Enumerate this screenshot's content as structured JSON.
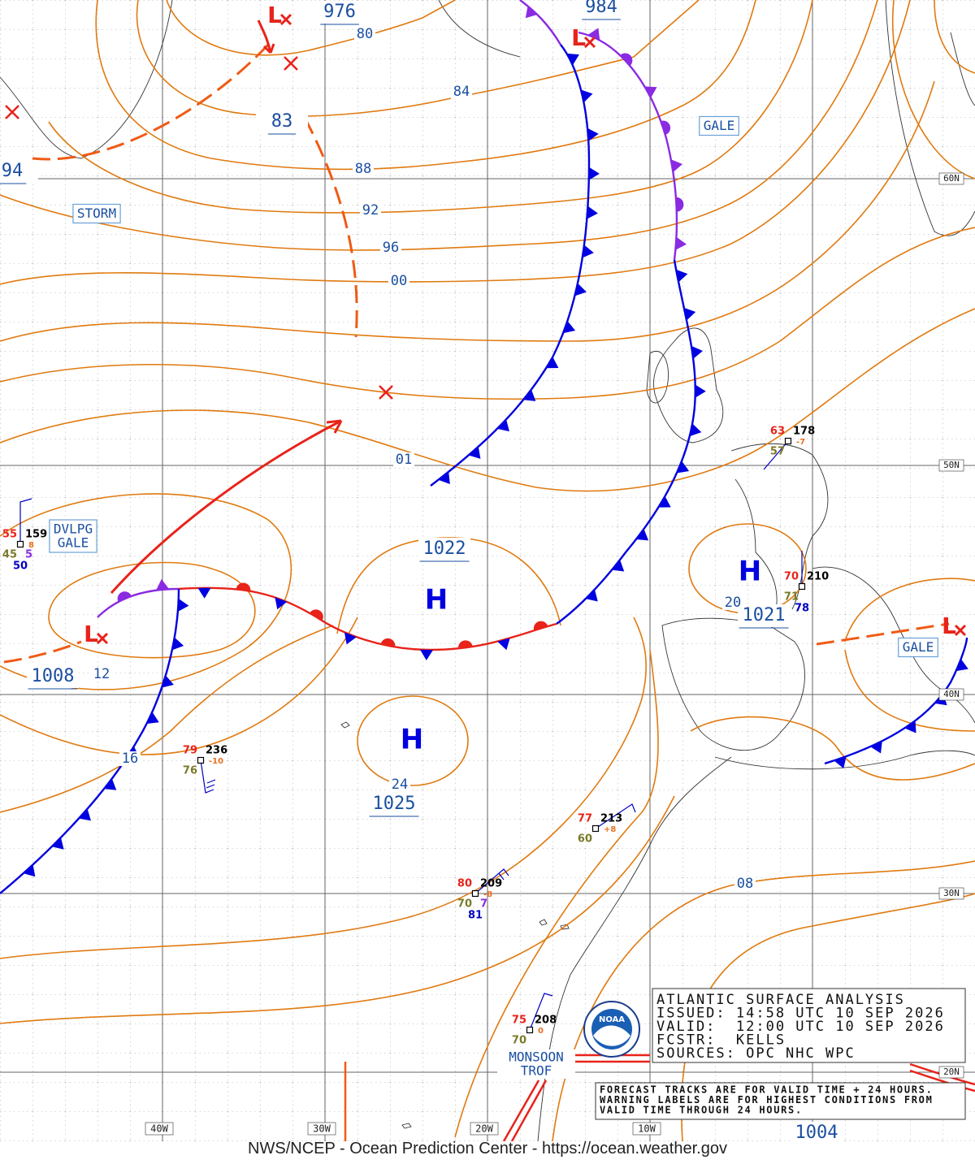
{
  "center_symbols": [
    "L",
    "L",
    "L",
    "L",
    "H",
    "H",
    "H"
  ],
  "pressure_labels": [
    "976",
    "984",
    "83",
    "94",
    "1022",
    "1021",
    "1008",
    "1025",
    "1004"
  ],
  "isobar_labels": [
    "80",
    "84",
    "88",
    "92",
    "96",
    "00",
    "01",
    "12",
    "16",
    "24",
    "20",
    "08"
  ],
  "warnings": [
    [
      "STORM"
    ],
    [
      "GALE"
    ],
    [
      "DVLPG",
      "GALE"
    ],
    [
      "GALE"
    ]
  ],
  "lat_labels": [
    "60N",
    "50N",
    "40N",
    "30N",
    "20N"
  ],
  "lon_labels": [
    "40W",
    "30W",
    "20W",
    "10W"
  ],
  "trough_label": [
    "MONSOON",
    "TROF"
  ],
  "stations": [
    {
      "temp": "55",
      "pressure": "159",
      "dewpoint": "45",
      "tendency": "8",
      "weather": "5",
      "sst": "50"
    },
    {
      "temp": "79",
      "pressure": "236",
      "dewpoint": "76",
      "tendency": "-10"
    },
    {
      "temp": "63",
      "pressure": "178",
      "dewpoint": "57",
      "tendency": "-7"
    },
    {
      "temp": "70",
      "pressure": "210",
      "dewpoint": "71",
      "sst": "78"
    },
    {
      "temp": "77",
      "pressure": "213",
      "dewpoint": "60",
      "tendency": "+8"
    },
    {
      "temp": "80",
      "pressure": "209",
      "dewpoint": "70",
      "tendency": "-8",
      "weather": "7",
      "sst": "81"
    },
    {
      "temp": "75",
      "pressure": "208",
      "dewpoint": "70",
      "tendency": "0"
    }
  ],
  "info_box": {
    "title": "ATLANTIC SURFACE ANALYSIS",
    "issued": "ISSUED: 14:58 UTC 10 SEP 2026",
    "valid": "VALID:  12:00 UTC 10 SEP 2026",
    "forecaster": "FCSTR:  KELLS",
    "sources": "SOURCES: OPC NHC WPC"
  },
  "note": [
    "FORECAST TRACKS ARE FOR VALID TIME + 24 HOURS.",
    "WARNING LABELS ARE FOR HIGHEST CONDITIONS FROM",
    "VALID TIME THROUGH 24 HOURS."
  ],
  "logo_text": "NOAA",
  "footer": "NWS/NCEP - Ocean Prediction Center - https://ocean.weather.gov"
}
